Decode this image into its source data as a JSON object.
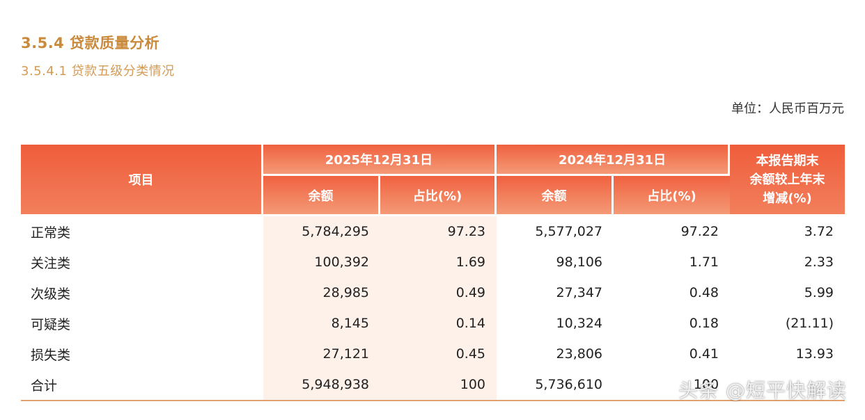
{
  "section_title": "3.5.4 贷款质量分析",
  "subsection_title": "3.5.4.1 贷款五级分类情况",
  "unit": "单位：人民币百万元",
  "table": {
    "col_item": "项目",
    "group_2025": "2025年12月31日",
    "group_2024": "2024年12月31日",
    "col_change": "本报告期末余额较上年末增减(%)",
    "col_change_lines": [
      "本报告期末",
      "余额较上年末",
      "增减(%)"
    ],
    "col_amount": "余额",
    "col_ratio": "占比(%)",
    "rows": [
      {
        "label": "正常类",
        "amt2025": "5,784,295",
        "ratio2025": "97.23",
        "amt2024": "5,577,027",
        "ratio2024": "97.22",
        "change": "3.72"
      },
      {
        "label": "关注类",
        "amt2025": "100,392",
        "ratio2025": "1.69",
        "amt2024": "98,106",
        "ratio2024": "1.71",
        "change": "2.33"
      },
      {
        "label": "次级类",
        "amt2025": "28,985",
        "ratio2025": "0.49",
        "amt2024": "27,347",
        "ratio2024": "0.48",
        "change": "5.99"
      },
      {
        "label": "可疑类",
        "amt2025": "8,145",
        "ratio2025": "0.14",
        "amt2024": "10,324",
        "ratio2024": "0.18",
        "change": "(21.11)"
      },
      {
        "label": "损失类",
        "amt2025": "27,121",
        "ratio2025": "0.45",
        "amt2024": "23,806",
        "ratio2024": "0.41",
        "change": "13.93"
      },
      {
        "label": "合计",
        "amt2025": "5,948,938",
        "ratio2025": "100",
        "amt2024": "5,736,610",
        "ratio2024": "100",
        "change": ""
      }
    ]
  },
  "watermark": "头条 @短平快解读"
}
